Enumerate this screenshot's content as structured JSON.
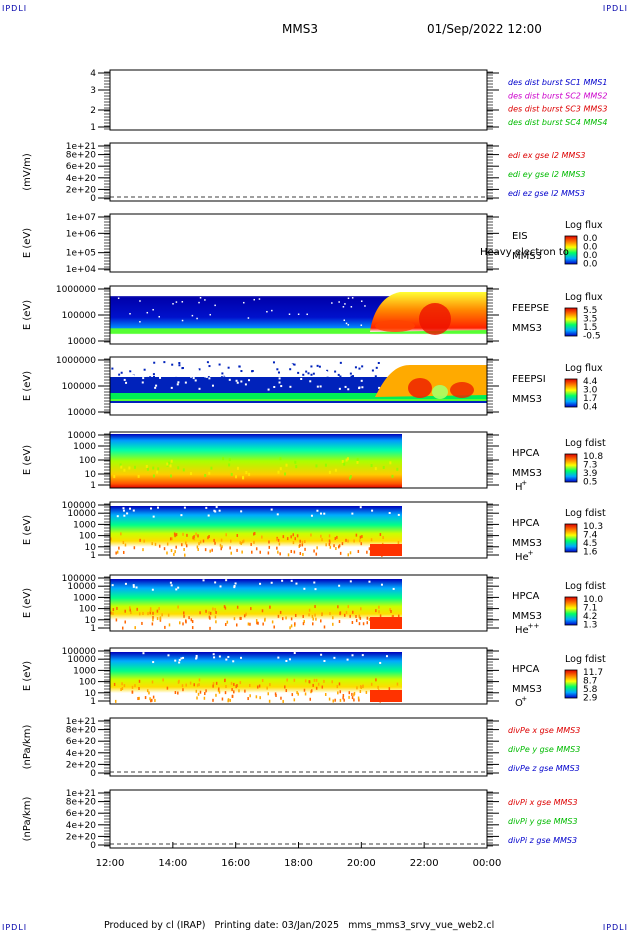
{
  "header": {
    "corner_left_top": "IPDLI",
    "corner_right_top": "IPDLI",
    "title": "MMS3",
    "datetime": "01/Sep/2022 12:00"
  },
  "footer": {
    "text": "Produced by cl (IRAP)   Printing date: 03/Jan/2025   mms_mms3_srvy_vue_web2.cl",
    "corner_left_bottom": "IPDLI",
    "corner_right_bottom": "IPDLI"
  },
  "colors": {
    "blue": "#0000cc",
    "magenta": "#cc00cc",
    "red": "#dd0000",
    "green": "#00bb00"
  },
  "chart_data": [
    {
      "type": "line",
      "panel": "burst",
      "yticks": [
        "4",
        "3",
        "2",
        "1"
      ],
      "legend": [
        {
          "text": "des dist burst SC1 MMS1",
          "color": "blue"
        },
        {
          "text": "des dist burst SC2 MMS2",
          "color": "magenta"
        },
        {
          "text": "des dist burst SC3 MMS3",
          "color": "red"
        },
        {
          "text": "des dist burst SC4 MMS4",
          "color": "green"
        }
      ]
    },
    {
      "type": "line",
      "panel": "edi",
      "ylabel": "(mV/m)",
      "yticks": [
        "1e+21",
        "8e+20",
        "6e+20",
        "4e+20",
        "2e+20",
        "0"
      ],
      "legend": [
        {
          "text": "edi ex gse l2 MMS3",
          "color": "red"
        },
        {
          "text": "edi ey gse l2 MMS3",
          "color": "green"
        },
        {
          "text": "edi ez gse l2 MMS3",
          "color": "blue"
        }
      ]
    },
    {
      "type": "heatmap",
      "panel": "eis",
      "ylabel": "E (eV)",
      "yticks": [
        "1e+07",
        "1e+06",
        "1e+05",
        "1e+04"
      ],
      "instrument": "EIS",
      "sub": "MMS3",
      "overlay": "Heavy electron to",
      "cbar_title": "Log flux",
      "cbar_values": [
        "0.0",
        "0.0",
        "0.0",
        "0.0"
      ]
    },
    {
      "type": "heatmap",
      "panel": "feepse",
      "ylabel": "E (eV)",
      "yticks": [
        "1000000",
        "100000",
        "10000"
      ],
      "instrument": "FEEPSE",
      "sub": "MMS3",
      "cbar_title": "Log flux",
      "cbar_values": [
        "5.5",
        "3.5",
        "1.5",
        "-0.5"
      ]
    },
    {
      "type": "heatmap",
      "panel": "feepsi",
      "ylabel": "E (eV)",
      "yticks": [
        "1000000",
        "100000",
        "10000"
      ],
      "instrument": "FEEPSI",
      "sub": "MMS3",
      "cbar_title": "Log flux",
      "cbar_values": [
        "4.4",
        "3.0",
        "1.7",
        "0.4"
      ]
    },
    {
      "type": "heatmap",
      "panel": "hpca_h",
      "ylabel": "E (eV)",
      "yticks": [
        "10000",
        "1000",
        "100",
        "10",
        "1"
      ],
      "instrument": "HPCA",
      "sub": "MMS3",
      "species": "H",
      "species_sup": "+",
      "cbar_title": "Log fdist",
      "cbar_values": [
        "10.8",
        "7.3",
        "3.9",
        "0.5"
      ]
    },
    {
      "type": "heatmap",
      "panel": "hpca_he",
      "ylabel": "E (eV)",
      "yticks": [
        "100000",
        "10000",
        "1000",
        "100",
        "10",
        "1"
      ],
      "instrument": "HPCA",
      "sub": "MMS3",
      "species": "He",
      "species_sup": "+",
      "cbar_title": "Log fdist",
      "cbar_values": [
        "10.3",
        "7.4",
        "4.5",
        "1.6"
      ]
    },
    {
      "type": "heatmap",
      "panel": "hpca_hepp",
      "ylabel": "E (eV)",
      "yticks": [
        "100000",
        "10000",
        "1000",
        "100",
        "10",
        "1"
      ],
      "instrument": "HPCA",
      "sub": "MMS3",
      "species": "He",
      "species_sup": "++",
      "cbar_title": "Log fdist",
      "cbar_values": [
        "10.0",
        "7.1",
        "4.2",
        "1.3"
      ]
    },
    {
      "type": "heatmap",
      "panel": "hpca_o",
      "ylabel": "E (eV)",
      "yticks": [
        "100000",
        "10000",
        "1000",
        "100",
        "10",
        "1"
      ],
      "instrument": "HPCA",
      "sub": "MMS3",
      "species": "O",
      "species_sup": "+",
      "cbar_title": "Log fdist",
      "cbar_values": [
        "11.7",
        "8.7",
        "5.8",
        "2.9"
      ]
    },
    {
      "type": "line",
      "panel": "divpe",
      "ylabel": "(nPa/km)",
      "yticks": [
        "1e+21",
        "8e+20",
        "6e+20",
        "4e+20",
        "2e+20",
        "0"
      ],
      "legend": [
        {
          "text": "divPe x gse MMS3",
          "color": "red"
        },
        {
          "text": "divPe y gse MMS3",
          "color": "green"
        },
        {
          "text": "divPe z gse MMS3",
          "color": "blue"
        }
      ]
    },
    {
      "type": "line",
      "panel": "divpi",
      "ylabel": "(nPa/km)",
      "yticks": [
        "1e+21",
        "8e+20",
        "6e+20",
        "4e+20",
        "2e+20",
        "0"
      ],
      "xticks": [
        "12:00",
        "14:00",
        "16:00",
        "18:00",
        "20:00",
        "22:00",
        "00:00"
      ],
      "legend": [
        {
          "text": "divPi x gse MMS3",
          "color": "red"
        },
        {
          "text": "divPi y gse MMS3",
          "color": "green"
        },
        {
          "text": "divPi z gse MMS3",
          "color": "blue"
        }
      ]
    }
  ]
}
